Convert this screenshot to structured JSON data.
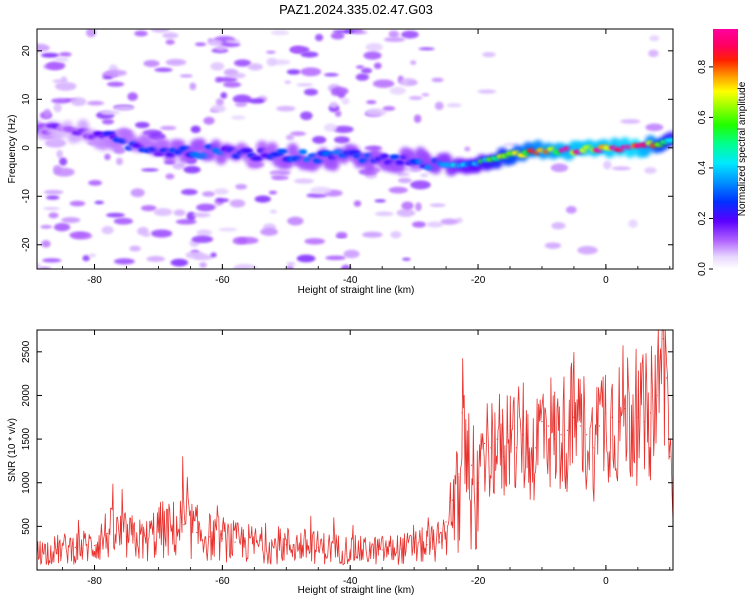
{
  "figure": {
    "title": "PAZ1.2024.335.02.47.G03"
  },
  "colors": {
    "trace": "#e8322e",
    "ridge_low": "#3a00d8",
    "ridge_mid": "#00c8ff",
    "ridge_high": "#ff0040"
  },
  "chart_data": [
    {
      "type": "heatmap",
      "title": "PAZ1.2024.335.02.47.G03",
      "xlabel": "Height of straight line (km)",
      "ylabel": "Frequency (Hz)",
      "xlim": [
        -89,
        10.5
      ],
      "ylim": [
        -25,
        24.5
      ],
      "xticks": [
        -80,
        -60,
        -40,
        -20,
        0
      ],
      "yticks": [
        -20,
        -10,
        0,
        10,
        20
      ],
      "xtick_labels": [
        "-80",
        "-60",
        "-40",
        "-20",
        "0"
      ],
      "ytick_labels": [
        "-20",
        "-10",
        "0",
        "10",
        "20"
      ],
      "colorbar": {
        "label": "Normalized spectral amplitude",
        "range": [
          0,
          0.95
        ],
        "ticks": [
          0.0,
          0.2,
          0.4,
          0.6,
          0.8
        ],
        "tick_labels": [
          "0.0",
          "0.2",
          "0.4",
          "0.6",
          "0.8"
        ],
        "colormap": "rainbow (white-violet-blue-cyan-green-yellow-red-magenta)"
      },
      "ridge": {
        "x": [
          -89,
          -85,
          -80,
          -75,
          -70,
          -65,
          -60,
          -55,
          -50,
          -45,
          -40,
          -35,
          -30,
          -25,
          -20,
          -15,
          -10,
          -5,
          0,
          5,
          10.5
        ],
        "frequency": [
          3.5,
          4,
          3,
          1,
          -0.5,
          -1,
          -0.5,
          -1.5,
          -1.5,
          -2,
          -1.5,
          -2.5,
          -2.5,
          -4,
          -3,
          -1.5,
          -0.5,
          -0.5,
          0,
          0,
          1.5
        ],
        "amplitude": [
          0.2,
          0.15,
          0.2,
          0.25,
          0.25,
          0.3,
          0.3,
          0.25,
          0.3,
          0.3,
          0.3,
          0.3,
          0.3,
          0.35,
          0.45,
          0.65,
          0.8,
          0.9,
          0.9,
          0.95,
          0.5
        ]
      }
    },
    {
      "type": "line",
      "xlabel": "Height of straight line (km)",
      "ylabel": "SNR (10 * v/v)",
      "xlim": [
        -89,
        10.5
      ],
      "ylim": [
        0,
        2750
      ],
      "xticks": [
        -80,
        -60,
        -40,
        -20,
        0
      ],
      "yticks": [
        500,
        1000,
        1500,
        2000,
        2500
      ],
      "xtick_labels": [
        "-80",
        "-60",
        "-40",
        "-20",
        "0"
      ],
      "ytick_labels": [
        "500",
        "1000",
        "1500",
        "2000",
        "2500"
      ],
      "series": [
        {
          "x": [
            -89,
            -86,
            -83,
            -80,
            -78,
            -75,
            -72,
            -70,
            -68,
            -66,
            -64,
            -62,
            -60,
            -58,
            -55,
            -52,
            -50,
            -48,
            -45,
            -42,
            -40,
            -37,
            -35,
            -32,
            -30,
            -28,
            -26,
            -25,
            -24,
            -23,
            -22.5,
            -22,
            -21,
            -20,
            -19,
            -18,
            -17,
            -16,
            -15,
            -14,
            -13,
            -12,
            -11,
            -10,
            -9,
            -8,
            -7,
            -6,
            -5,
            -4,
            -3,
            -2,
            -1,
            0,
            1,
            2,
            3,
            4,
            5,
            6,
            7,
            8,
            9,
            9.5,
            10,
            10.5
          ],
          "values": [
            200,
            230,
            260,
            280,
            420,
            380,
            330,
            460,
            450,
            520,
            430,
            380,
            360,
            320,
            300,
            260,
            290,
            280,
            260,
            240,
            230,
            220,
            230,
            240,
            260,
            290,
            320,
            550,
            800,
            1100,
            1800,
            1400,
            1200,
            1000,
            1450,
            1400,
            1500,
            1300,
            1650,
            1400,
            1550,
            1350,
            1400,
            1700,
            1650,
            1500,
            1550,
            1600,
            1750,
            1650,
            1550,
            1400,
            1650,
            1800,
            1750,
            1700,
            1850,
            1750,
            1750,
            1700,
            1800,
            2000,
            2650,
            2200,
            1300,
            900
          ]
        }
      ]
    }
  ]
}
